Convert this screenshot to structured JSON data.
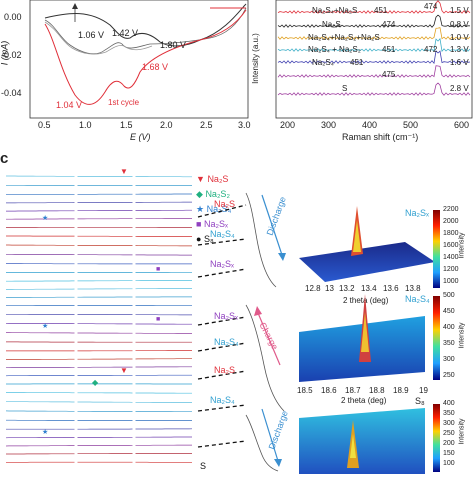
{
  "panel_label_c": "c",
  "cv": {
    "ylabel": "I (mA)",
    "xlabel": "E (V)",
    "yticks": [
      "0.00",
      "-0.02",
      "-0.04"
    ],
    "xticks": [
      "0.5",
      "1.0",
      "1.5",
      "2.0",
      "2.5",
      "3.0"
    ],
    "annotations": [
      "1.06 V",
      "1.42 V",
      "1.80 V",
      "1.68 V",
      "1.04 V",
      "1st cycle"
    ],
    "colors": {
      "first_cycle": "#e0303a",
      "later_cycles": "#333333"
    }
  },
  "raman": {
    "ylabel": "Intensity (a.u.)",
    "xlabel": "Raman shift (cm⁻¹)",
    "xticks": [
      "200",
      "300",
      "400",
      "500",
      "600"
    ],
    "traces": [
      {
        "species": "Na₂S₄+Na₂S",
        "peak": "451",
        "peak2": "474",
        "voltage": "1.5 V",
        "color": "#e0303a"
      },
      {
        "species": "Na₂S",
        "peak": "474",
        "voltage": "0.8 V",
        "color": "#222222"
      },
      {
        "species": "Na₂S₄+Na₂S₂+Na₂S",
        "peak": "",
        "voltage": "1.0 V",
        "color": "#e0a020"
      },
      {
        "species": "Na₂S₄ + Na₂S₂",
        "peak": "451",
        "peak2": "472",
        "voltage": "1.3 V",
        "color": "#40b0c8"
      },
      {
        "species": "Na₂S₄",
        "peak": "451",
        "voltage": "1.6 V",
        "color": "#4040b0"
      },
      {
        "species": "",
        "peak": "475",
        "voltage": "",
        "color": "#a040a0"
      },
      {
        "species": "S",
        "peak": "",
        "voltage": "2.8 V",
        "color": "#a040a0"
      }
    ]
  },
  "xrd": {
    "legend": [
      {
        "label": "Na₂S",
        "symbol": "▼",
        "color": "#e0303a"
      },
      {
        "label": "Na₂S₂",
        "symbol": "◆",
        "color": "#20b080"
      },
      {
        "label": "Na₂S₄",
        "symbol": "★",
        "color": "#3080d0"
      },
      {
        "label": "Na₂Sₓ",
        "symbol": "■",
        "color": "#9040c0"
      },
      {
        "label": "S₈",
        "symbol": "●",
        "color": "#111111"
      }
    ],
    "profile_labels": [
      {
        "text": "Na₂S",
        "color": "#e0303a"
      },
      {
        "text": "Na₂S₄",
        "color": "#30a0d0"
      },
      {
        "text": "Na₂Sₓ",
        "color": "#9040c0"
      },
      {
        "text": "Na₂Sₓ",
        "color": "#9040c0"
      },
      {
        "text": "Na₂S₄",
        "color": "#30a0d0"
      },
      {
        "text": "Na₂S",
        "color": "#e0303a"
      },
      {
        "text": "Na₂S₄",
        "color": "#30a0d0"
      },
      {
        "text": "S",
        "color": "#111111"
      }
    ],
    "arrows": [
      "Discharge",
      "Charge",
      "Discharge"
    ]
  },
  "maps": [
    {
      "title": "Na₂Sₓ",
      "xlabel": "2 theta (deg)",
      "xticks": [
        "12.8",
        "13",
        "13.2",
        "13.4",
        "13.6",
        "13.8"
      ],
      "cbar": [
        "2200",
        "2000",
        "1800",
        "1600",
        "1400",
        "1200",
        "1000"
      ],
      "cbar_label": "Intensity"
    },
    {
      "title": "Na₂S₄",
      "xlabel": "2 theta (deg)",
      "xticks": [
        "18.5",
        "18.6",
        "18.7",
        "18.8",
        "18.9",
        "19"
      ],
      "cbar": [
        "500",
        "450",
        "400",
        "350",
        "300",
        "250"
      ],
      "cbar_label": "Intensity"
    },
    {
      "title": "S₈",
      "xlabel": "",
      "xticks": [],
      "cbar": [
        "400",
        "350",
        "300",
        "250",
        "200",
        "150",
        "100"
      ],
      "cbar_label": "Intensity"
    }
  ]
}
